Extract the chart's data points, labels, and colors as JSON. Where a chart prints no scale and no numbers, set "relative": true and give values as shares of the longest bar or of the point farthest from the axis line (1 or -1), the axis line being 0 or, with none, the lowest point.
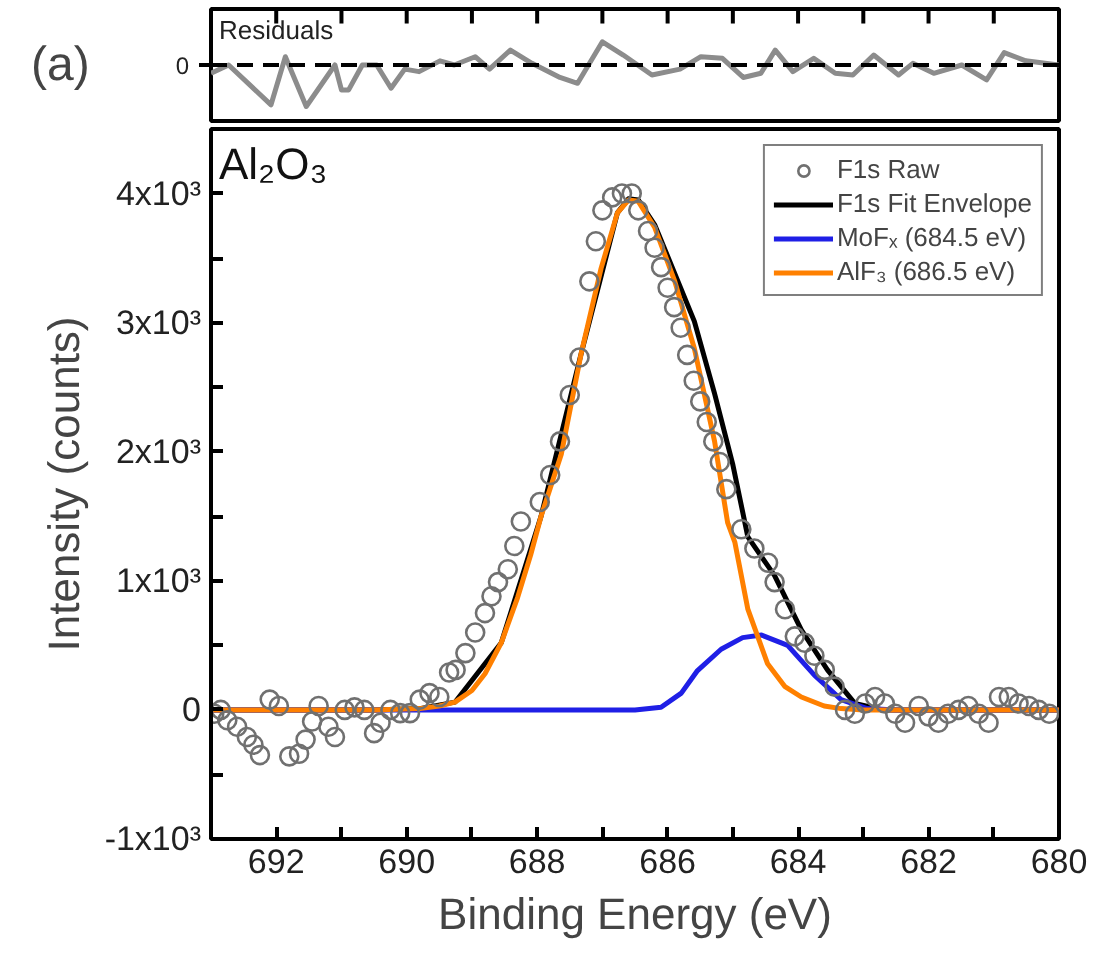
{
  "chart_data": [
    {
      "type": "line",
      "title": "Residuals",
      "relative": true,
      "annotations": [
        "(a)"
      ],
      "grid": false,
      "tick_labels": false,
      "xlim": [
        693,
        680
      ],
      "xticks": [
        {
          "value": 692,
          "label": null
        },
        {
          "value": 691,
          "label": null
        },
        {
          "value": 690,
          "label": null
        },
        {
          "value": 689,
          "label": null
        },
        {
          "value": 688,
          "label": null
        },
        {
          "value": 687,
          "label": null
        },
        {
          "value": 686,
          "label": null
        },
        {
          "value": 685,
          "label": null
        },
        {
          "value": 684,
          "label": null
        },
        {
          "value": 683,
          "label": null
        },
        {
          "value": 682,
          "label": null
        },
        {
          "value": 681,
          "label": null
        }
      ],
      "ref_lines": [
        {
          "axis": "y",
          "value": 0,
          "label": "0",
          "color": "#000000",
          "line_style": "dashed"
        }
      ],
      "series": [
        {
          "color": "#8c8c8c",
          "x": [
            693.0,
            692.73,
            692.08,
            691.86,
            691.54,
            691.1,
            691.0,
            690.89,
            690.68,
            690.46,
            690.24,
            690.03,
            689.81,
            689.49,
            689.27,
            688.95,
            688.73,
            688.41,
            688.08,
            687.65,
            687.38,
            687.0,
            686.68,
            686.24,
            685.81,
            685.49,
            685.16,
            684.84,
            684.57,
            684.35,
            684.08,
            683.76,
            683.43,
            683.16,
            682.84,
            682.46,
            682.24,
            681.92,
            681.49,
            681.11,
            680.84,
            680.51,
            680.0
          ],
          "values": [
            -0.2,
            0,
            -0.96,
            0.2,
            -1.0,
            0,
            -0.6,
            -0.6,
            0,
            0,
            -0.56,
            -0.1,
            -0.16,
            0.1,
            0,
            0.2,
            -0.1,
            0.36,
            0.04,
            -0.3,
            -0.44,
            0.56,
            0.24,
            -0.24,
            -0.1,
            0.2,
            0.16,
            -0.3,
            -0.2,
            0.36,
            -0.16,
            0.16,
            -0.2,
            -0.24,
            0.24,
            -0.24,
            0.04,
            -0.2,
            0,
            -0.36,
            0.3,
            0.1,
            0
          ]
        }
      ]
    },
    {
      "type": "line",
      "xlabel": "Binding Energy (eV)",
      "ylabel": "Intensity (counts)",
      "annotations": [
        "Al₂O₃"
      ],
      "legend": "top right",
      "grid": false,
      "xlim": [
        693,
        680
      ],
      "ylim": [
        -1000,
        4500
      ],
      "xticks": [
        692,
        {
          "value": 691,
          "label": null
        },
        690,
        {
          "value": 689,
          "label": null
        },
        688,
        {
          "value": 687,
          "label": null
        },
        686,
        {
          "value": 685,
          "label": null
        },
        684,
        {
          "value": 683,
          "label": null
        },
        682,
        {
          "value": 681,
          "label": null
        },
        680
      ],
      "yticks": [
        {
          "value": -1000,
          "label": "-1x10³"
        },
        {
          "value": -500,
          "label": null
        },
        0,
        {
          "value": 500,
          "label": null
        },
        {
          "value": 1000,
          "label": "1x10³"
        },
        {
          "value": 1500,
          "label": null
        },
        {
          "value": 2000,
          "label": "2x10³"
        },
        {
          "value": 2500,
          "label": null
        },
        {
          "value": 3000,
          "label": "3x10³"
        },
        {
          "value": 3500,
          "label": null
        },
        {
          "value": 4000,
          "label": "4x10³"
        }
      ],
      "series": [
        {
          "name": "F1s Raw",
          "type": "scatter",
          "marker": "circle",
          "color": "#707070",
          "x": [
            692.95,
            692.85,
            692.75,
            692.6,
            692.45,
            692.35,
            692.25,
            692.1,
            691.96,
            691.8,
            691.65,
            691.55,
            691.45,
            691.35,
            691.2,
            691.1,
            690.95,
            690.8,
            690.65,
            690.5,
            690.4,
            690.25,
            690.1,
            689.95,
            689.8,
            689.65,
            689.5,
            689.35,
            689.25,
            689.1,
            688.95,
            688.8,
            688.7,
            688.6,
            688.45,
            688.35,
            688.25,
            687.96,
            687.8,
            687.65,
            687.5,
            687.35,
            687.2,
            687.1,
            687.0,
            686.85,
            686.7,
            686.55,
            686.45,
            686.3,
            686.2,
            686.1,
            686.0,
            685.9,
            685.8,
            685.7,
            685.6,
            685.5,
            685.4,
            685.3,
            685.2,
            685.1,
            684.87,
            684.67,
            684.46,
            684.36,
            684.2,
            684.05,
            683.9,
            683.75,
            683.59,
            683.44,
            683.28,
            683.13,
            682.97,
            682.82,
            682.67,
            682.51,
            682.36,
            682.15,
            682.0,
            681.85,
            681.7,
            681.54,
            681.39,
            681.23,
            681.08,
            680.92,
            680.77,
            680.62,
            680.46,
            680.31,
            680.15
          ],
          "values": [
            -30,
            0,
            -80,
            -130,
            -210,
            -270,
            -350,
            80,
            30,
            -360,
            -340,
            -230,
            -90,
            30,
            -130,
            -210,
            0,
            20,
            0,
            -180,
            -100,
            0,
            -25,
            -25,
            80,
            130,
            100,
            290,
            310,
            440,
            600,
            750,
            880,
            990,
            1090,
            1270,
            1460,
            1610,
            1820,
            2080,
            2440,
            2730,
            3320,
            3630,
            3870,
            3970,
            4000,
            4000,
            3870,
            3710,
            3580,
            3430,
            3270,
            3120,
            2960,
            2750,
            2550,
            2390,
            2230,
            2080,
            1920,
            1710,
            1400,
            1250,
            1140,
            990,
            780,
            570,
            520,
            420,
            310,
            180,
            0,
            -30,
            50,
            100,
            50,
            -30,
            -100,
            30,
            -50,
            -100,
            -30,
            0,
            30,
            -30,
            -100,
            100,
            100,
            50,
            30,
            0,
            -30
          ]
        },
        {
          "name": "F1s Fit Envelope",
          "color": "#000000",
          "x": [
            693.0,
            690.5,
            689.8,
            689.26,
            688.55,
            687.94,
            687.33,
            686.77,
            686.6,
            686.45,
            686.2,
            685.89,
            685.59,
            685.28,
            685.0,
            684.77,
            684.36,
            683.95,
            683.55,
            683.13,
            682.7,
            680.0
          ],
          "values": [
            0,
            0,
            10,
            60,
            520,
            1500,
            2750,
            3850,
            3960,
            3950,
            3760,
            3380,
            3010,
            2450,
            1900,
            1340,
            1040,
            620,
            310,
            50,
            0,
            0
          ]
        },
        {
          "name": "MoFₓ (684.5 eV)",
          "color": "#1f1fe6",
          "x": [
            693.0,
            686.5,
            686.1,
            685.79,
            685.55,
            685.18,
            684.85,
            684.56,
            684.16,
            683.75,
            683.34,
            682.94,
            682.5,
            680.0
          ],
          "values": [
            0,
            0,
            20,
            130,
            300,
            470,
            560,
            580,
            500,
            270,
            80,
            10,
            0,
            0
          ]
        },
        {
          "name": "AlF₃ (686.5 eV)",
          "color": "#ff8000",
          "x": [
            693.0,
            690.5,
            689.8,
            689.5,
            689.26,
            689.0,
            688.8,
            688.55,
            688.3,
            688.1,
            687.94,
            687.63,
            687.33,
            687.02,
            686.77,
            686.6,
            686.45,
            686.2,
            685.89,
            685.59,
            685.28,
            685.08,
            684.97,
            684.77,
            684.47,
            684.2,
            683.95,
            683.6,
            683.34,
            683.0,
            680.0
          ],
          "values": [
            0,
            0,
            10,
            30,
            60,
            150,
            280,
            520,
            870,
            1200,
            1500,
            1980,
            2750,
            3420,
            3850,
            3950,
            3940,
            3740,
            3320,
            2800,
            2080,
            1450,
            1300,
            780,
            360,
            180,
            100,
            30,
            10,
            0,
            0
          ]
        }
      ]
    }
  ]
}
